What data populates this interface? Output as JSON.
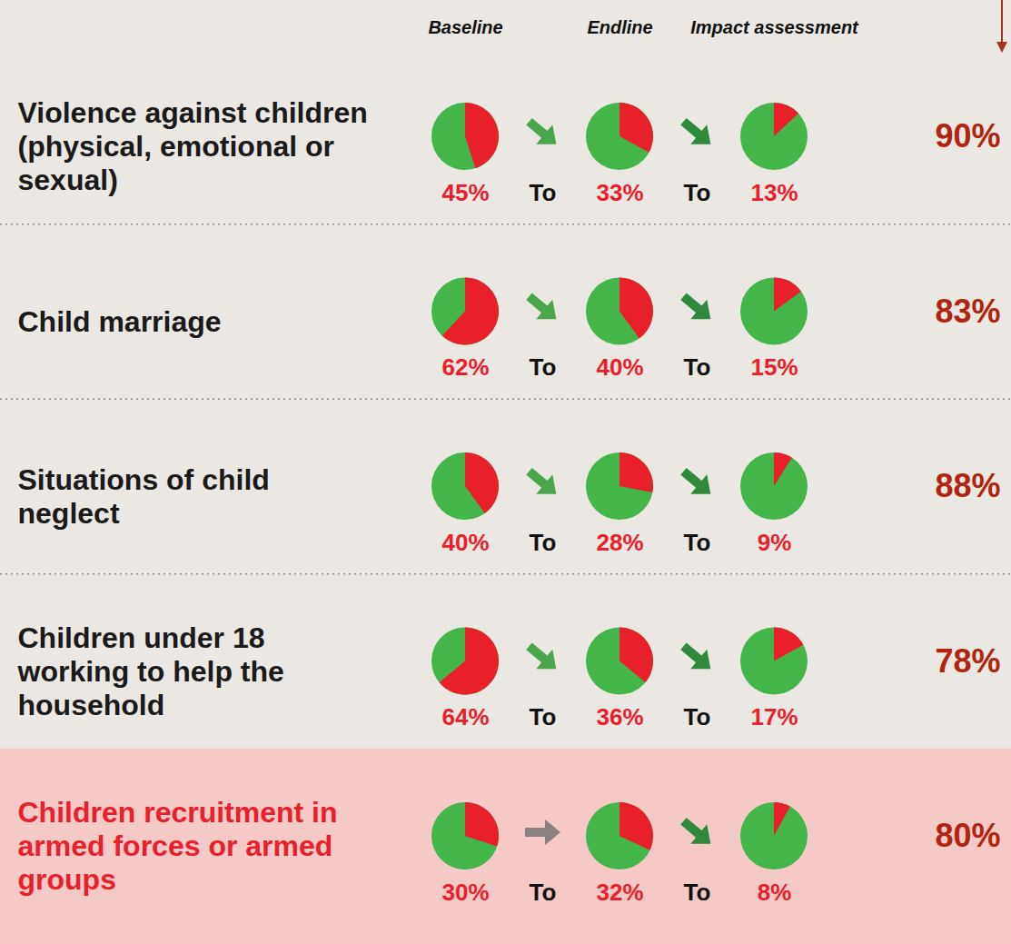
{
  "chart_data": {
    "type": "pie",
    "columns": [
      "Baseline",
      "Endline",
      "Impact assessment"
    ],
    "connector": "To",
    "total": 100,
    "colors": [
      "#e8202a",
      "#43b549"
    ],
    "rows": [
      {
        "label": "Violence against children (physical, emotional or sexual)",
        "values": [
          45,
          33,
          13
        ],
        "value_labels": [
          "45%",
          "33%",
          "13%"
        ],
        "reduction": 90,
        "reduction_label": "90%"
      },
      {
        "label": "Child marriage",
        "values": [
          62,
          40,
          15
        ],
        "value_labels": [
          "62%",
          "40%",
          "15%"
        ],
        "reduction": 83,
        "reduction_label": "83%"
      },
      {
        "label": "Situations of child neglect",
        "values": [
          40,
          28,
          9
        ],
        "value_labels": [
          "40%",
          "28%",
          "9%"
        ],
        "reduction": 88,
        "reduction_label": "88%"
      },
      {
        "label": "Children under 18 working to help the household",
        "values": [
          64,
          36,
          17
        ],
        "value_labels": [
          "64%",
          "36%",
          "17%"
        ],
        "reduction": 78,
        "reduction_label": "78%"
      },
      {
        "label": "Children recruitment in armed forces or armed groups",
        "values": [
          30,
          32,
          8
        ],
        "value_labels": [
          "30%",
          "32%",
          "8%"
        ],
        "reduction": 80,
        "reduction_label": "80%"
      }
    ]
  }
}
